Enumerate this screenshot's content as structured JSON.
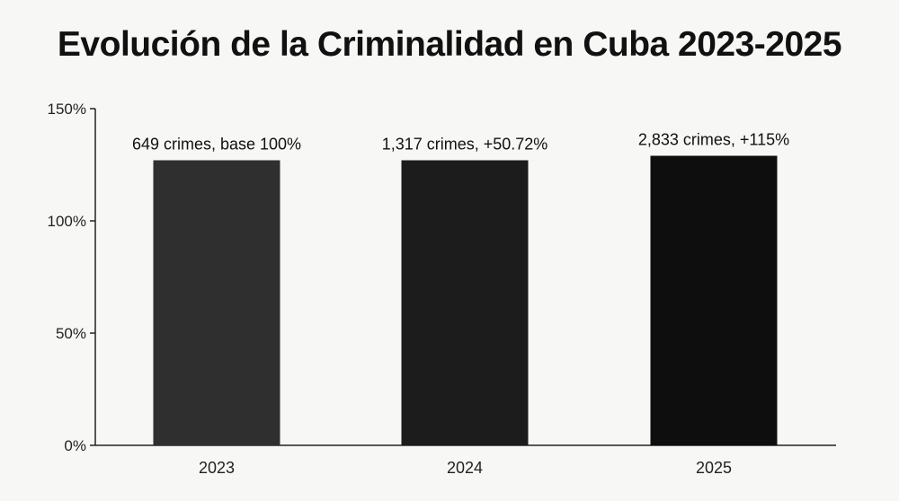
{
  "chart_data": {
    "type": "bar",
    "title": "Evolución de la Criminalidad en Cuba 2023-2025",
    "xlabel": "",
    "ylabel": "",
    "categories": [
      "2023",
      "2024",
      "2025"
    ],
    "values": [
      127,
      127,
      129
    ],
    "data_labels": [
      "649 crimes, base 100%",
      "1,317 crimes, +50.72%",
      "2,833 crimes, +115%"
    ],
    "bar_colors": [
      "#2f2f2f",
      "#1c1c1c",
      "#0e0e0e"
    ],
    "ylim": [
      0,
      150
    ],
    "yticks": [
      0,
      50,
      100,
      150
    ],
    "ytick_labels": [
      "0%",
      "50%",
      "100%",
      "150%"
    ],
    "grid": false,
    "legend": "none"
  }
}
